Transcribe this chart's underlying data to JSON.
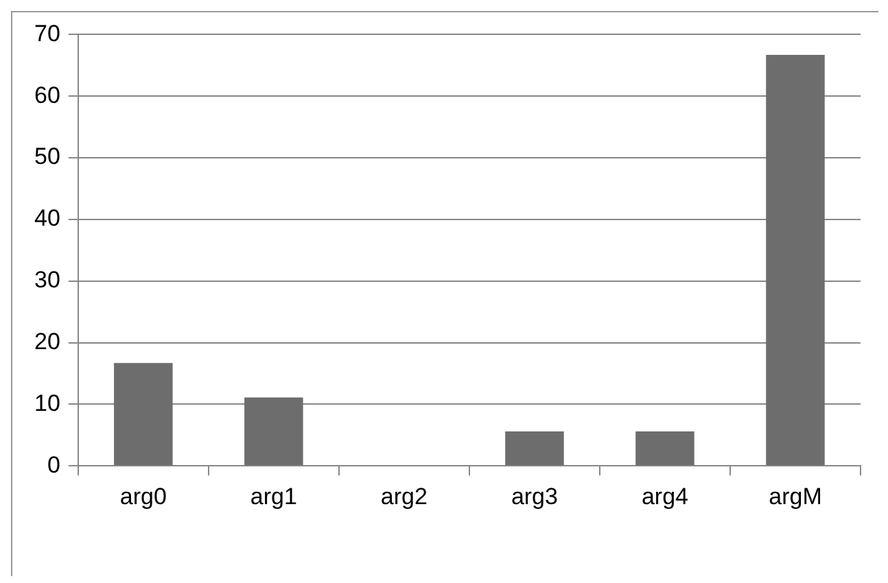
{
  "chart_data": {
    "type": "bar",
    "categories": [
      "arg0",
      "arg1",
      "arg2",
      "arg3",
      "arg4",
      "argM"
    ],
    "values": [
      16.7,
      11.1,
      0,
      5.6,
      5.6,
      66.7
    ],
    "color": "#6d6d6d",
    "ylim": [
      0,
      70
    ],
    "yticks": [
      0,
      10,
      20,
      30,
      40,
      50,
      60,
      70
    ],
    "grid": "y",
    "legend": false
  }
}
